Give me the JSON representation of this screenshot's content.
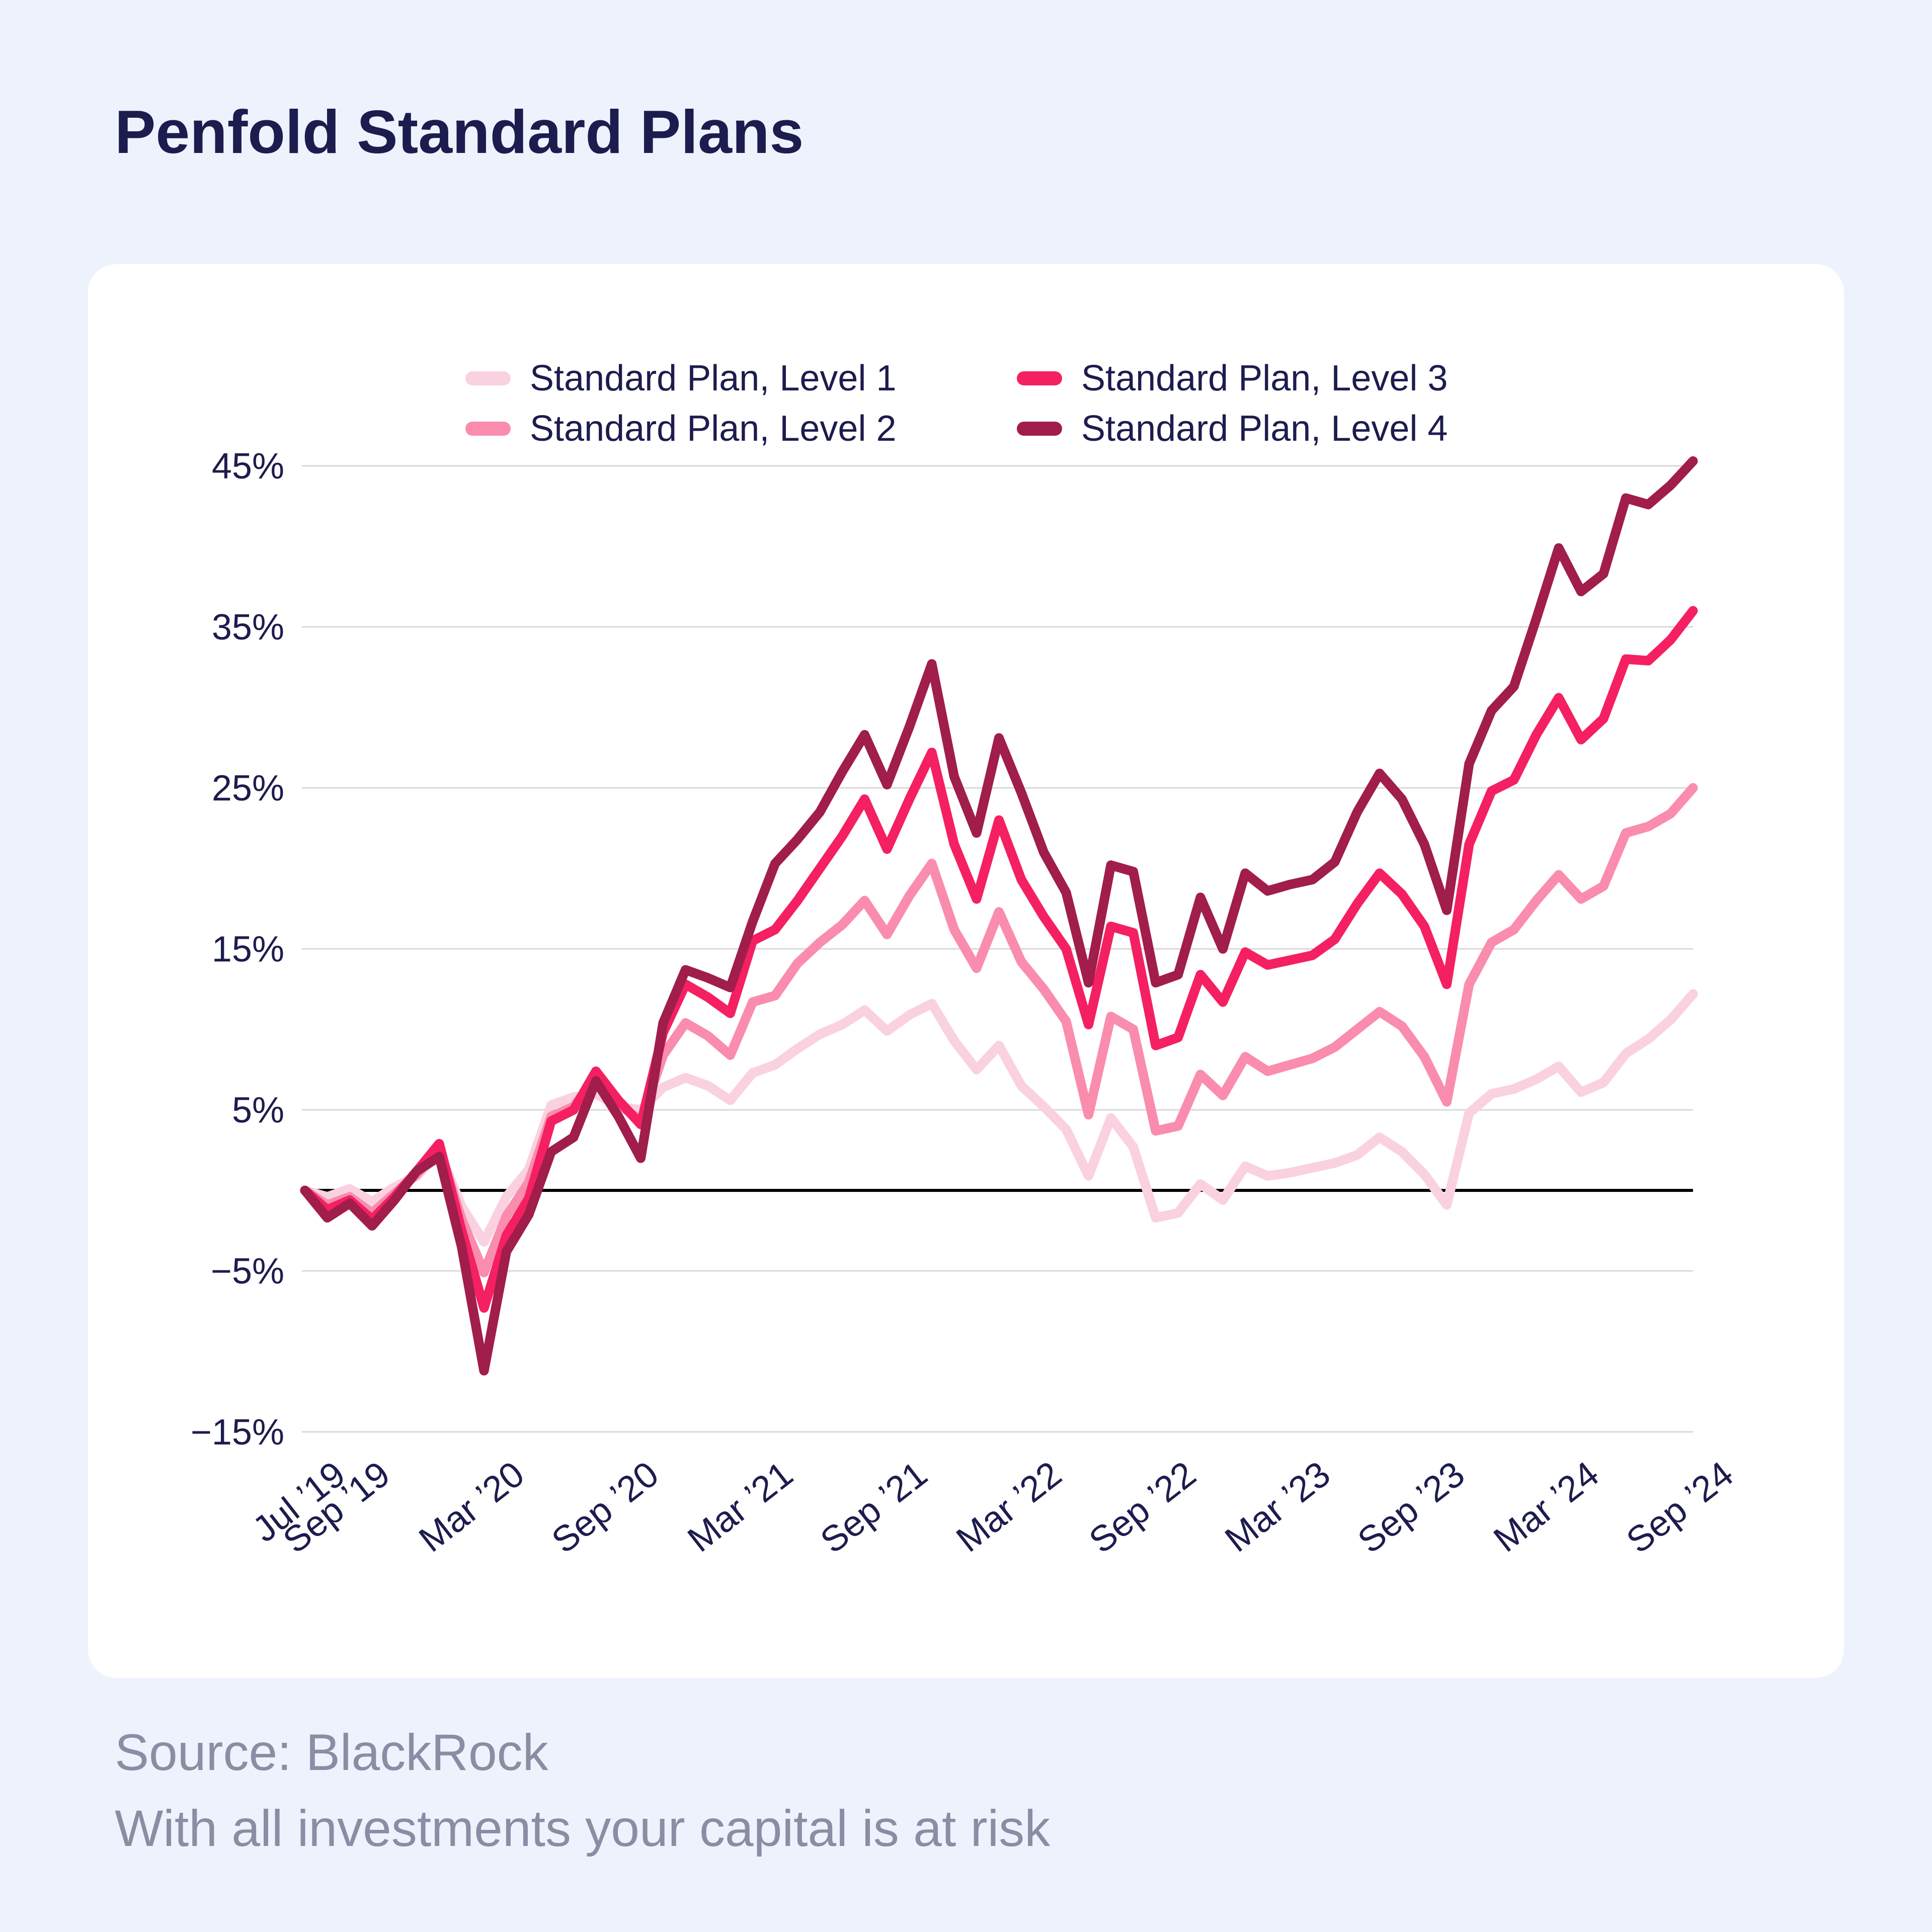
{
  "page": {
    "title": "Penfold Standard Plans",
    "footer_line1": "Source: BlackRock",
    "footer_line2": "With all investments your capital is at risk",
    "background_color": "#eef2fc",
    "card_color": "#ffffff",
    "title_color": "#1c1c4e",
    "footer_color": "#8c8ca4"
  },
  "legend": {
    "items": [
      {
        "label": "Standard Plan, Level 1",
        "color": "#fad1e0"
      },
      {
        "label": "Standard Plan, Level 2",
        "color": "#fa8cae"
      },
      {
        "label": "Standard Plan, Level 3",
        "color": "#f42061"
      },
      {
        "label": "Standard Plan, Level 4",
        "color": "#a01d4c"
      }
    ]
  },
  "chart_data": {
    "type": "line",
    "title": "Penfold Standard Plans",
    "xlabel": "",
    "ylabel": "",
    "ylim": [
      -15,
      45
    ],
    "grid": true,
    "zero_line_color": "#000000",
    "gridline_color": "#d9d9d9",
    "legend_position": "top",
    "y_ticks": [
      {
        "label": "45%",
        "value": 45
      },
      {
        "label": "35%",
        "value": 35
      },
      {
        "label": "25%",
        "value": 25
      },
      {
        "label": "15%",
        "value": 15
      },
      {
        "label": "5%",
        "value": 5
      },
      {
        "label": "−5%",
        "value": -5
      },
      {
        "label": "−15%",
        "value": -15
      }
    ],
    "x_tick_indices": [
      0,
      2,
      8,
      14,
      20,
      26,
      32,
      38,
      44,
      50,
      56,
      62
    ],
    "x_tick_labels": [
      "Jul ’19",
      "Sep ’19",
      "Mar ’20",
      "Sep ’20",
      "Mar ’21",
      "Sep ’21",
      "Mar ’22",
      "Sep ’22",
      "Mar ’23",
      "Sep ’23",
      "Mar ’24",
      "Sep ’24"
    ],
    "categories": [
      "Jul ’19",
      "Aug ’19",
      "Sep ’19",
      "Oct ’19",
      "Nov ’19",
      "Dec ’19",
      "Jan ’20",
      "Feb ’20",
      "Mar ’20",
      "Apr ’20",
      "May ’20",
      "Jun ’20",
      "Jul ’20",
      "Aug ’20",
      "Sep ’20",
      "Oct ’20",
      "Nov ’20",
      "Dec ’20",
      "Jan ’21",
      "Feb ’21",
      "Mar ’21",
      "Apr ’21",
      "May ’21",
      "Jun ’21",
      "Jul ’21",
      "Aug ’21",
      "Sep ’21",
      "Oct ’21",
      "Nov ’21",
      "Dec ’21",
      "Jan ’22",
      "Feb ’22",
      "Mar ’22",
      "Apr ’22",
      "May ’22",
      "Jun ’22",
      "Jul ’22",
      "Aug ’22",
      "Sep ’22",
      "Oct ’22",
      "Nov ’22",
      "Dec ’22",
      "Jan ’23",
      "Feb ’23",
      "Mar ’23",
      "Apr ’23",
      "May ’23",
      "Jun ’23",
      "Jul ’23",
      "Aug ’23",
      "Sep ’23",
      "Oct ’23",
      "Nov ’23",
      "Dec ’23",
      "Jan ’24",
      "Feb ’24",
      "Mar ’24",
      "Apr ’24",
      "May ’24",
      "Jun ’24",
      "Jul ’24",
      "Aug ’24",
      "Sep ’24"
    ],
    "series": [
      {
        "name": "Standard Plan, Level 1",
        "color": "#fad1e0",
        "values": [
          0,
          -0.4,
          0.1,
          -0.7,
          0.2,
          0.9,
          2.4,
          -1.0,
          -3.2,
          -0.4,
          1.3,
          5.3,
          5.8,
          6.0,
          5.2,
          5.0,
          6.4,
          7.0,
          6.5,
          5.6,
          7.3,
          7.8,
          8.8,
          9.7,
          10.3,
          11.2,
          9.9,
          10.9,
          11.6,
          9.3,
          7.5,
          9.0,
          6.5,
          5.2,
          3.8,
          0.9,
          4.5,
          2.7,
          -1.7,
          -1.4,
          0.4,
          -0.6,
          1.5,
          0.9,
          1.1,
          1.4,
          1.7,
          2.2,
          3.3,
          2.4,
          1.0,
          -0.9,
          4.8,
          6.0,
          6.3,
          6.9,
          7.7,
          6.1,
          6.7,
          8.5,
          9.4,
          10.6,
          12.2
        ]
      },
      {
        "name": "Standard Plan, Level 2",
        "color": "#fa8cae",
        "values": [
          0,
          -0.9,
          -0.4,
          -1.4,
          -0.2,
          1.0,
          2.6,
          -1.8,
          -5.1,
          -1.6,
          0.5,
          4.6,
          5.2,
          7.0,
          5.4,
          4.3,
          8.4,
          10.4,
          9.6,
          8.4,
          11.7,
          12.1,
          14.1,
          15.4,
          16.5,
          18.0,
          15.9,
          18.3,
          20.3,
          16.2,
          13.8,
          17.3,
          14.2,
          12.5,
          10.5,
          4.7,
          10.8,
          10.0,
          3.7,
          4.0,
          7.2,
          5.9,
          8.3,
          7.4,
          7.8,
          8.2,
          8.9,
          10.0,
          11.1,
          10.2,
          8.3,
          5.5,
          12.8,
          15.4,
          16.2,
          18.0,
          19.6,
          18.1,
          18.9,
          22.2,
          22.6,
          23.4,
          25.0
        ]
      },
      {
        "name": "Standard Plan, Level 3",
        "color": "#f42061",
        "values": [
          0,
          -1.2,
          -0.6,
          -1.8,
          -0.4,
          1.2,
          2.9,
          -2.5,
          -7.3,
          -2.8,
          -0.5,
          4.3,
          5.0,
          7.4,
          5.6,
          4.1,
          9.8,
          12.8,
          12.0,
          11.0,
          15.5,
          16.2,
          18.0,
          20.0,
          22.0,
          24.3,
          21.2,
          24.3,
          27.2,
          21.5,
          18.1,
          23.0,
          19.3,
          17.0,
          15.0,
          10.3,
          16.4,
          16.0,
          9.0,
          9.5,
          13.4,
          11.7,
          14.8,
          14.0,
          14.3,
          14.6,
          15.6,
          17.8,
          19.7,
          18.4,
          16.4,
          12.8,
          21.5,
          24.8,
          25.5,
          28.3,
          30.6,
          28.0,
          29.3,
          33.0,
          32.9,
          34.2,
          36.0
        ]
      },
      {
        "name": "Standard Plan, Level 4",
        "color": "#a01d4c",
        "values": [
          0,
          -1.7,
          -0.8,
          -2.2,
          -0.6,
          1.2,
          2.1,
          -3.5,
          -11.2,
          -3.8,
          -1.5,
          2.4,
          3.3,
          6.8,
          4.6,
          2.0,
          10.4,
          13.7,
          13.2,
          12.6,
          16.7,
          20.3,
          21.8,
          23.5,
          26.0,
          28.3,
          25.2,
          28.8,
          32.7,
          25.7,
          22.2,
          28.1,
          24.7,
          21.0,
          18.5,
          12.9,
          20.2,
          19.8,
          12.9,
          13.4,
          18.2,
          15.0,
          19.7,
          18.6,
          19.0,
          19.3,
          20.4,
          23.5,
          25.9,
          24.3,
          21.5,
          17.4,
          26.5,
          29.8,
          31.3,
          35.5,
          39.9,
          37.2,
          38.3,
          43.0,
          42.6,
          43.8,
          45.3
        ]
      }
    ]
  }
}
